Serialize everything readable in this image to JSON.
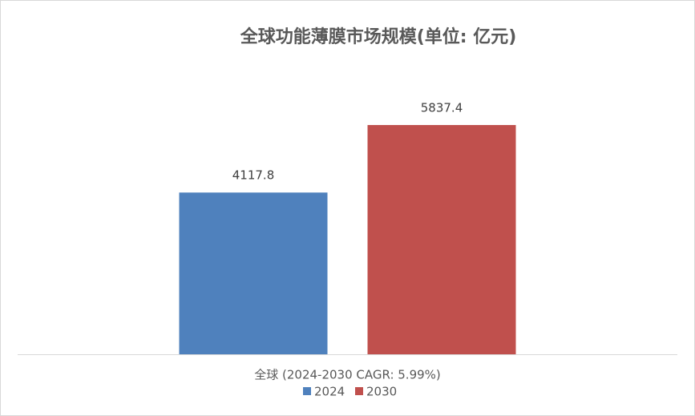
{
  "chart_data": {
    "type": "bar",
    "title": "全球功能薄膜市场规模(单位: 亿元)",
    "categories": [
      "全球 (2024-2030 CAGR: 5.99%)"
    ],
    "series": [
      {
        "name": "2024",
        "color": "#4f81bd",
        "values": [
          4117.8
        ]
      },
      {
        "name": "2030",
        "color": "#c0504d",
        "values": [
          5837.4
        ]
      }
    ],
    "ylim": [
      0,
      7000
    ],
    "legend": "bottom"
  }
}
